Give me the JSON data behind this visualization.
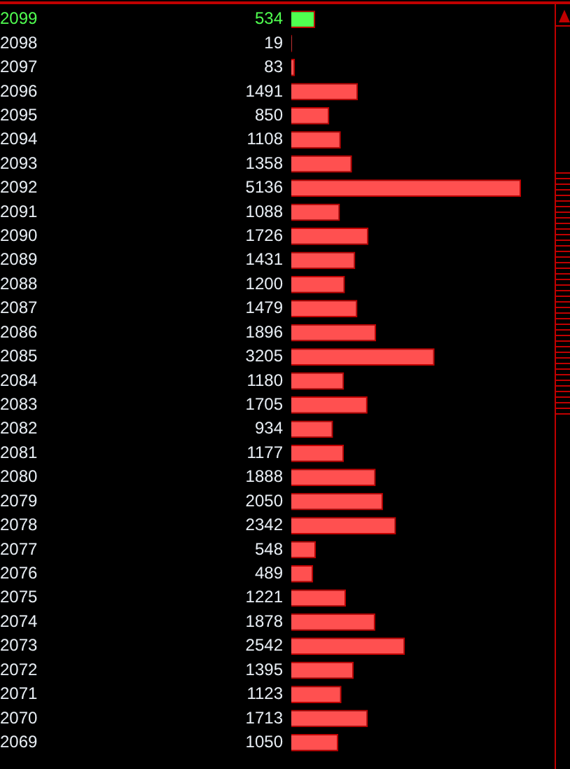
{
  "chart_data": {
    "type": "bar",
    "orientation": "horizontal",
    "categories": [
      "2099",
      "2098",
      "2097",
      "2096",
      "2095",
      "2094",
      "2093",
      "2092",
      "2091",
      "2090",
      "2089",
      "2088",
      "2087",
      "2086",
      "2085",
      "2084",
      "2083",
      "2082",
      "2081",
      "2080",
      "2079",
      "2078",
      "2077",
      "2076",
      "2075",
      "2074",
      "2073",
      "2072",
      "2071",
      "2070",
      "2069"
    ],
    "values": [
      534,
      19,
      83,
      1491,
      850,
      1108,
      1358,
      5136,
      1088,
      1726,
      1431,
      1200,
      1479,
      1896,
      3205,
      1180,
      1705,
      934,
      1177,
      1888,
      2050,
      2342,
      548,
      489,
      1221,
      1878,
      2542,
      1395,
      1123,
      1713,
      1050
    ],
    "colors": [
      "#50ff50",
      "#ff5050",
      "#ff5050",
      "#ff5050",
      "#ff5050",
      "#ff5050",
      "#ff5050",
      "#ff5050",
      "#ff5050",
      "#ff5050",
      "#ff5050",
      "#ff5050",
      "#ff5050",
      "#ff5050",
      "#ff5050",
      "#ff5050",
      "#ff5050",
      "#ff5050",
      "#ff5050",
      "#ff5050",
      "#ff5050",
      "#ff5050",
      "#ff5050",
      "#ff5050",
      "#ff5050",
      "#ff5050",
      "#ff5050",
      "#ff5050",
      "#ff5050",
      "#ff5050",
      "#ff5050"
    ],
    "data_labels": true,
    "legend": false
  }
}
